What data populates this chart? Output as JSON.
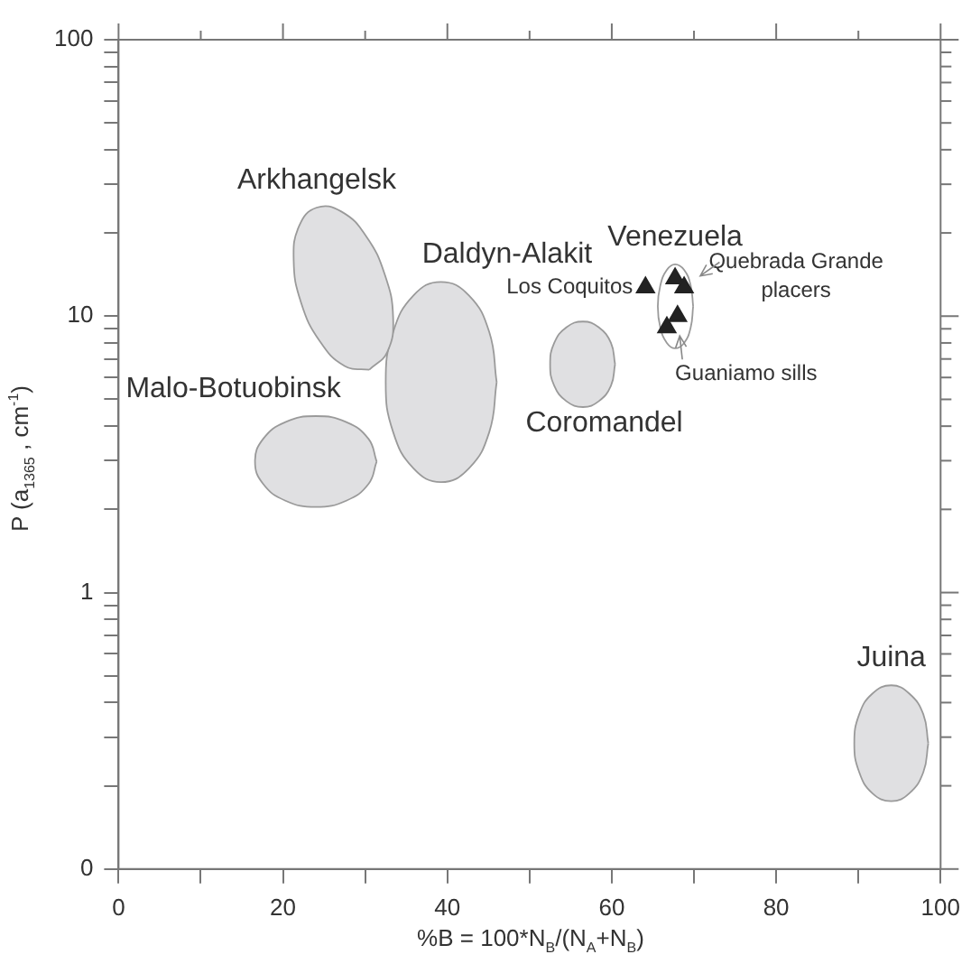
{
  "chart_data": {
    "type": "scatter",
    "xlabel": "%B = 100*N$_{B}$/(N$_{A}$+N$_{B}$)",
    "ylabel": "P (a$_{1365}$ , cm$^{-1}$)",
    "log": "y",
    "grid": false,
    "legend": false,
    "marker": "triangle",
    "xlim": [
      0,
      100
    ],
    "xticks": [
      0,
      {
        "value": 10,
        "label": null
      },
      20,
      {
        "value": 30,
        "label": null
      },
      40,
      {
        "value": 50,
        "label": null
      },
      60,
      {
        "value": 70,
        "label": null
      },
      80,
      {
        "value": 90,
        "label": null
      },
      100
    ],
    "ylim": [
      0.1,
      100
    ],
    "yticks": [
      {
        "value": 0.1,
        "label": "0"
      },
      {
        "value": 0.2,
        "label": null
      },
      {
        "value": 0.3,
        "label": null
      },
      {
        "value": 0.4,
        "label": null
      },
      {
        "value": 0.5,
        "label": null
      },
      {
        "value": 0.6,
        "label": null
      },
      {
        "value": 0.7,
        "label": null
      },
      {
        "value": 0.8,
        "label": null
      },
      {
        "value": 0.9,
        "label": null
      },
      1,
      {
        "value": 2,
        "label": null
      },
      {
        "value": 3,
        "label": null
      },
      {
        "value": 4,
        "label": null
      },
      {
        "value": 5,
        "label": null
      },
      {
        "value": 6,
        "label": null
      },
      {
        "value": 7,
        "label": null
      },
      {
        "value": 8,
        "label": null
      },
      {
        "value": 9,
        "label": null
      },
      10,
      {
        "value": 20,
        "label": null
      },
      {
        "value": 30,
        "label": null
      },
      {
        "value": 40,
        "label": null
      },
      {
        "value": 50,
        "label": null
      },
      {
        "value": 60,
        "label": null
      },
      {
        "value": 70,
        "label": null
      },
      {
        "value": 80,
        "label": null
      },
      {
        "value": 90,
        "label": null
      },
      100
    ],
    "series": [
      {
        "type": "area",
        "marker": "none",
        "name": "Arkhangelsk",
        "color": "#e0e0e2",
        "x": [
          30.5,
          32.7,
          33.4,
          32.4,
          30.1,
          27.1,
          24.1,
          22,
          21.3,
          22.2,
          24.5,
          27.5,
          30.5
        ],
        "values": [
          6.4,
          7.43,
          9.9,
          14.1,
          19.5,
          23.9,
          24.7,
          21.3,
          16,
          11.2,
          8.1,
          6.6,
          6.4
        ]
      },
      {
        "type": "area",
        "marker": "none",
        "name": "Daldyn-Alakit",
        "color": "#e0e0e2",
        "x": [
          46,
          45.1,
          42.6,
          39.2,
          35.9,
          33.4,
          32.5,
          33.4,
          35.9,
          39.2,
          42.6,
          45.1,
          46
        ],
        "values": [
          5.77,
          8.75,
          11.9,
          13.3,
          11.9,
          8.75,
          5.77,
          3.81,
          2.81,
          2.51,
          2.81,
          3.81,
          5.77
        ]
      },
      {
        "type": "area",
        "marker": "none",
        "name": "Malo-Botuobinsk",
        "color": "#e0e0e2",
        "x": [
          31.4,
          30.4,
          27.7,
          24,
          20.3,
          17.6,
          16.6,
          17.6,
          20.3,
          24,
          27.7,
          30.4,
          31.4
        ],
        "values": [
          2.98,
          3.6,
          4.14,
          4.35,
          4.14,
          3.6,
          2.98,
          2.47,
          2.15,
          2.04,
          2.15,
          2.47,
          2.98
        ]
      },
      {
        "type": "area",
        "marker": "none",
        "name": "Coromandel",
        "color": "#e0e0e2",
        "x": [
          60.4,
          59.9,
          58.4,
          56.5,
          54.5,
          53,
          52.5,
          53,
          54.5,
          56.5,
          58.4,
          59.9,
          60.4
        ],
        "values": [
          6.7,
          8,
          9.12,
          9.56,
          9.12,
          8,
          6.7,
          5.6,
          4.92,
          4.69,
          4.92,
          5.6,
          6.7
        ]
      },
      {
        "type": "area",
        "marker": "none",
        "name": "Juina",
        "color": "#e0e0e2",
        "x": [
          98.5,
          97.9,
          96.2,
          94,
          91.7,
          90.1,
          89.5,
          90.1,
          91.7,
          94,
          96.2,
          97.9,
          98.5
        ],
        "values": [
          0.285,
          0.363,
          0.431,
          0.462,
          0.431,
          0.363,
          0.285,
          0.224,
          0.188,
          0.176,
          0.188,
          0.224,
          0.285
        ]
      },
      {
        "type": "area",
        "marker": "none",
        "name": "Venezuela",
        "color": "#ffffff",
        "x": [
          69.9,
          69.6,
          68.8,
          67.7,
          66.7,
          65.9,
          65.6,
          65.9,
          66.7,
          67.7,
          68.8,
          69.6,
          69.9
        ],
        "values": [
          10.85,
          12.9,
          14.7,
          15.4,
          14.7,
          12.9,
          10.85,
          9.1,
          8,
          7.65,
          8,
          9.1,
          10.85
        ]
      },
      {
        "color": "#222222",
        "x": [
          64.1,
          67.7,
          68.8,
          68,
          66.7
        ],
        "values": [
          12.7,
          13.7,
          12.7,
          10,
          9.1
        ]
      }
    ],
    "annotations": [
      {
        "text": "Los Coquitos",
        "x": 64.1,
        "y": 12.7
      },
      {
        "text": "Quebrada  Grande placers",
        "x": 68.8,
        "y": 12.7
      },
      {
        "text": "Guaniamo sills",
        "x": 68,
        "y": 10
      }
    ]
  }
}
